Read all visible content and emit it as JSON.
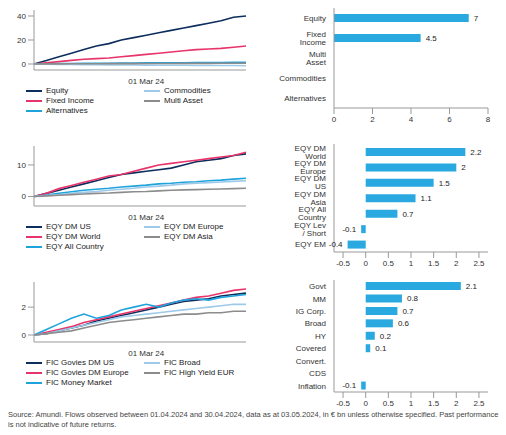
{
  "chart_data": [
    {
      "type": "line",
      "categories": [
        null,
        null,
        null,
        null,
        null,
        null,
        null,
        null,
        null,
        "01 Mar 24",
        null,
        null,
        null,
        null,
        null,
        null,
        null,
        null
      ],
      "ylim": [
        -5,
        45
      ],
      "yticks": [
        0,
        20,
        40
      ],
      "grid": false,
      "series": [
        {
          "name": "Equity",
          "color": "#0d2e5c",
          "values": [
            0,
            3,
            6,
            9,
            12,
            15,
            17,
            20,
            22,
            24,
            26,
            28,
            30,
            32,
            34,
            36,
            39,
            40
          ]
        },
        {
          "name": "Fixed Income",
          "color": "#e8336b",
          "values": [
            0,
            1,
            2,
            3,
            4,
            4.5,
            5,
            6,
            7,
            8,
            9,
            10,
            11,
            12,
            12.5,
            13,
            14,
            15
          ]
        },
        {
          "name": "Alternatives",
          "color": "#1fa3dc",
          "values": [
            0,
            0.2,
            0.3,
            0.4,
            0.5,
            0.5,
            0.6,
            0.7,
            0.8,
            0.9,
            1,
            1,
            1.1,
            1.2,
            1.2,
            1.3,
            1.4,
            1.5
          ]
        },
        {
          "name": "Commodities",
          "color": "#9ec9e8",
          "values": [
            0,
            -0.2,
            -0.3,
            -0.4,
            -0.5,
            -0.6,
            -0.7,
            -0.8,
            -0.8,
            -0.9,
            -1,
            -1,
            -1.1,
            -1.2,
            -1.2,
            -1.3,
            -1.3,
            -1.4
          ]
        },
        {
          "name": "Multi Asset",
          "color": "#8c8c8c",
          "values": [
            0,
            0.1,
            0.1,
            0.2,
            0.2,
            0.2,
            0.3,
            0.3,
            0.3,
            0.4,
            0.4,
            0.4,
            0.5,
            0.5,
            0.5,
            0.6,
            0.6,
            0.6
          ]
        }
      ]
    },
    {
      "type": "bar",
      "orientation": "horizontal",
      "data_labels": true,
      "grid": false,
      "color": "#29a9e0",
      "categories": [
        "Equity",
        "Fixed Income",
        "Multi Asset",
        "Commodities",
        "Alternatives"
      ],
      "values": [
        7,
        4.5,
        0,
        0,
        0
      ],
      "xlim": [
        0,
        8
      ],
      "xticks": [
        0,
        2,
        4,
        6,
        8
      ]
    },
    {
      "type": "line",
      "categories": [
        null,
        null,
        null,
        null,
        null,
        null,
        null,
        null,
        null,
        "01 Mar 24",
        null,
        null,
        null,
        null,
        null,
        null,
        null,
        null
      ],
      "ylim": [
        -3,
        16
      ],
      "yticks": [
        0,
        10
      ],
      "grid": false,
      "series": [
        {
          "name": "EQY DM US",
          "color": "#0d2e5c",
          "values": [
            0,
            1,
            2,
            3,
            4,
            5,
            6,
            7,
            7.5,
            8,
            8.5,
            9,
            10,
            11,
            11.5,
            12,
            13,
            13.5
          ]
        },
        {
          "name": "EQY DM World",
          "color": "#e8336b",
          "values": [
            0,
            1,
            2.5,
            3.5,
            4.5,
            5.5,
            6.5,
            7,
            8,
            9,
            10,
            10.5,
            11,
            11.5,
            12,
            12.5,
            13,
            14
          ]
        },
        {
          "name": "EQY All Country",
          "color": "#1fa3dc",
          "values": [
            0,
            0.5,
            1,
            1.5,
            2,
            2.3,
            2.6,
            3,
            3.3,
            3.6,
            4,
            4.2,
            4.5,
            4.7,
            5,
            5.2,
            5.5,
            5.8
          ]
        },
        {
          "name": "EQY DM Europe",
          "color": "#9ec9e8",
          "values": [
            0,
            0.3,
            0.6,
            1,
            1.3,
            1.6,
            2,
            2.3,
            2.6,
            3,
            3.3,
            3.6,
            4,
            4.2,
            4.4,
            4.6,
            4.8,
            5
          ]
        },
        {
          "name": "EQY DM Asia",
          "color": "#8c8c8c",
          "values": [
            0,
            0.2,
            0.4,
            0.6,
            0.8,
            1,
            1.1,
            1.3,
            1.5,
            1.6,
            1.8,
            2,
            2.1,
            2.2,
            2.3,
            2.4,
            2.5,
            2.6
          ]
        }
      ]
    },
    {
      "type": "bar",
      "orientation": "horizontal",
      "data_labels": true,
      "grid": false,
      "color": "#29a9e0",
      "categories": [
        "EQY DM World",
        "EQY DM Europe",
        "EQY DM US",
        "EQY DM Asia",
        "EQY All Country",
        "EQY Lev / Short",
        "EQY EM"
      ],
      "values": [
        2.2,
        2,
        1.5,
        1.1,
        0.7,
        -0.1,
        -0.4
      ],
      "xlim": [
        -0.7,
        2.7
      ],
      "xticks": [
        -0.5,
        0,
        0.5,
        1,
        1.5,
        2,
        2.5
      ]
    },
    {
      "type": "line",
      "categories": [
        null,
        null,
        null,
        null,
        null,
        null,
        null,
        null,
        null,
        "01 Mar 24",
        null,
        null,
        null,
        null,
        null,
        null,
        null,
        null
      ],
      "ylim": [
        -0.5,
        3.8
      ],
      "yticks": [
        0,
        2
      ],
      "grid": false,
      "series": [
        {
          "name": "FIC Govies DM US",
          "color": "#0d2e5c",
          "values": [
            0,
            0.1,
            0.3,
            0.5,
            0.7,
            1,
            1.2,
            1.4,
            1.6,
            1.8,
            2,
            2.2,
            2.4,
            2.5,
            2.6,
            2.8,
            2.9,
            3
          ]
        },
        {
          "name": "FIC Govies DM Europe",
          "color": "#e8336b",
          "values": [
            0,
            0.2,
            0.4,
            0.6,
            0.9,
            1.1,
            1.3,
            1.5,
            1.7,
            1.9,
            2.1,
            2.3,
            2.5,
            2.7,
            2.8,
            3,
            3.2,
            3.3
          ]
        },
        {
          "name": "FIC Money Market",
          "color": "#1fa3dc",
          "values": [
            0,
            0.4,
            0.8,
            1.2,
            1.5,
            1.2,
            1.4,
            1.8,
            2,
            2.2,
            2,
            2.3,
            2.5,
            2.6,
            2.5,
            2.7,
            2.8,
            2.9
          ]
        },
        {
          "name": "FIC Broad",
          "color": "#9ec9e8",
          "values": [
            0,
            0.1,
            0.3,
            0.5,
            0.7,
            0.9,
            1.1,
            1.3,
            1.4,
            1.5,
            1.6,
            1.7,
            1.8,
            1.9,
            2,
            2.1,
            2.2,
            2.2
          ]
        },
        {
          "name": "FIC High Yield EUR",
          "color": "#8c8c8c",
          "values": [
            0,
            0.1,
            0.2,
            0.3,
            0.5,
            0.7,
            0.9,
            1,
            1.1,
            1.2,
            1.3,
            1.4,
            1.5,
            1.5,
            1.6,
            1.6,
            1.7,
            1.7
          ]
        }
      ]
    },
    {
      "type": "bar",
      "orientation": "horizontal",
      "data_labels": true,
      "grid": false,
      "color": "#29a9e0",
      "categories": [
        "Govt",
        "MM",
        "IG Corp.",
        "Broad",
        "HY",
        "Covered",
        "Convert.",
        "CDS",
        "Inflation"
      ],
      "values": [
        2.1,
        0.8,
        0.7,
        0.6,
        0.2,
        0.1,
        0,
        0,
        -0.1
      ],
      "xlim": [
        -0.7,
        2.7
      ],
      "xticks": [
        -0.5,
        0,
        0.5,
        1,
        1.5,
        2,
        2.5
      ]
    }
  ],
  "source": "Source: Amundi. Flows observed between 01.04.2024 and 30.04.2024, data as at 03.05.2024, in € bn unless otherwise specified. Past performance is not indicative of future returns."
}
